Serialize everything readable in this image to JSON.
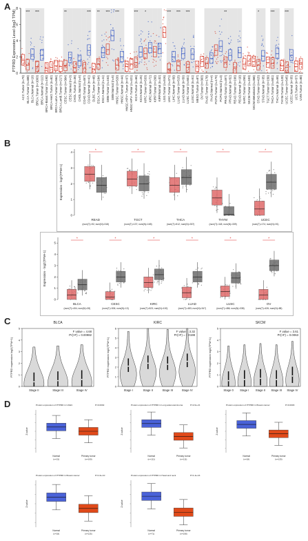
{
  "figure": {
    "panel_letters": {
      "a": "A",
      "b": "B",
      "c": "C",
      "d": "D"
    }
  },
  "panel_a": {
    "ylabel": "PTPRD Expression Level (log2 TPM)",
    "colors": {
      "tumor": "#d43a2a",
      "normal": "#3b5cc4",
      "band": "#cfcfcf"
    },
    "groups": [
      {
        "label": "ACC.Tumor (n=79)",
        "type": "tumor",
        "median": 1.6,
        "sig": ""
      },
      {
        "label": "BLCA.Tumor (n=408)",
        "type": "tumor",
        "median": 1.0,
        "sig": "***"
      },
      {
        "label": "BLCA.Normal (n=19)",
        "type": "normal",
        "median": 2.3,
        "sig": ""
      },
      {
        "label": "BRCA.Tumor (n=1093)",
        "type": "tumor",
        "median": 0.8,
        "sig": "***"
      },
      {
        "label": "BRCA.Normal (n=112)",
        "type": "normal",
        "median": 2.2,
        "sig": ""
      },
      {
        "label": "BRCA-Basal.Tumor (n=190)",
        "type": "tumor",
        "median": 0.6,
        "sig": ""
      },
      {
        "label": "BRCA-Her2.Tumor (n=82)",
        "type": "tumor",
        "median": 0.7,
        "sig": ""
      },
      {
        "label": "BRCA-LumA.Tumor (n=564)",
        "type": "tumor",
        "median": 0.9,
        "sig": ""
      },
      {
        "label": "BRCA-LumB.Tumor (n=217)",
        "type": "tumor",
        "median": 0.8,
        "sig": ""
      },
      {
        "label": "CESC.Tumor (n=304)",
        "type": "tumor",
        "median": 0.9,
        "sig": "**"
      },
      {
        "label": "CESC.Normal (n=3)",
        "type": "normal",
        "median": 1.9,
        "sig": ""
      },
      {
        "label": "CHOL.Tumor (n=36)",
        "type": "tumor",
        "median": 0.7,
        "sig": ""
      },
      {
        "label": "CHOL.Normal (n=9)",
        "type": "normal",
        "median": 1.5,
        "sig": ""
      },
      {
        "label": "COAD.Tumor (n=457)",
        "type": "tumor",
        "median": 0.6,
        "sig": ""
      },
      {
        "label": "COAD.Normal (n=41)",
        "type": "normal",
        "median": 2.8,
        "sig": "***"
      },
      {
        "label": "DLBC.Tumor (n=48)",
        "type": "tumor",
        "median": 0.5,
        "sig": ""
      },
      {
        "label": "ESCA.Tumor (n=184)",
        "type": "tumor",
        "median": 1.1,
        "sig": "**"
      },
      {
        "label": "ESCA.Normal (n=11)",
        "type": "normal",
        "median": 2.5,
        "sig": ""
      },
      {
        "label": "GBM.Tumor (n=153)",
        "type": "tumor",
        "median": 2.9,
        "sig": "***"
      },
      {
        "label": "GBM.Normal (n=5)",
        "type": "normal",
        "median": 4.6,
        "sig": ""
      },
      {
        "label": "HNSC.Tumor (n=520)",
        "type": "tumor",
        "median": 1.0,
        "sig": "***"
      },
      {
        "label": "HNSC.Normal (n=44)",
        "type": "normal",
        "median": 2.0,
        "sig": ""
      },
      {
        "label": "HNSC-HPV+.Tumor (n=97)",
        "type": "tumor",
        "median": 0.8,
        "sig": ""
      },
      {
        "label": "HNSC-HPV-.Tumor (n=421)",
        "type": "tumor",
        "median": 1.1,
        "sig": ""
      },
      {
        "label": "KICH.Tumor (n=66)",
        "type": "tumor",
        "median": 1.3,
        "sig": "***"
      },
      {
        "label": "KICH.Normal (n=25)",
        "type": "normal",
        "median": 2.6,
        "sig": ""
      },
      {
        "label": "KIRC.Tumor (n=533)",
        "type": "tumor",
        "median": 2.4,
        "sig": "*"
      },
      {
        "label": "KIRC.Normal (n=72)",
        "type": "normal",
        "median": 3.1,
        "sig": ""
      },
      {
        "label": "KIRP.Tumor (n=290)",
        "type": "tumor",
        "median": 2.6,
        "sig": ""
      },
      {
        "label": "KIRP.Normal (n=32)",
        "type": "normal",
        "median": 3.0,
        "sig": ""
      },
      {
        "label": "LGG.Tumor (n=516)",
        "type": "tumor",
        "median": 5.0,
        "sig": ""
      },
      {
        "label": "LIHC.Tumor (n=371)",
        "type": "tumor",
        "median": 0.5,
        "sig": "***"
      },
      {
        "label": "LIHC.Normal (n=50)",
        "type": "normal",
        "median": 2.0,
        "sig": ""
      },
      {
        "label": "LUAD.Tumor (n=515)",
        "type": "tumor",
        "median": 0.9,
        "sig": "***"
      },
      {
        "label": "LUAD.Normal (n=59)",
        "type": "normal",
        "median": 2.4,
        "sig": ""
      },
      {
        "label": "LUSC.Tumor (n=501)",
        "type": "tumor",
        "median": 0.7,
        "sig": "***"
      },
      {
        "label": "LUSC.Normal (n=51)",
        "type": "normal",
        "median": 2.3,
        "sig": ""
      },
      {
        "label": "MESO.Tumor (n=87)",
        "type": "tumor",
        "median": 0.8,
        "sig": ""
      },
      {
        "label": "OV.Tumor (n=303)",
        "type": "tumor",
        "median": 1.4,
        "sig": ""
      },
      {
        "label": "PAAD.Tumor (n=178)",
        "type": "tumor",
        "median": 1.2,
        "sig": ""
      },
      {
        "label": "PAAD.Normal (n=4)",
        "type": "normal",
        "median": 1.8,
        "sig": ""
      },
      {
        "label": "PCPG.Tumor (n=179)",
        "type": "tumor",
        "median": 2.8,
        "sig": ""
      },
      {
        "label": "PCPG.Normal (n=3)",
        "type": "normal",
        "median": 3.3,
        "sig": ""
      },
      {
        "label": "PRAD.Tumor (n=497)",
        "type": "tumor",
        "median": 1.3,
        "sig": "**"
      },
      {
        "label": "PRAD.Normal (n=52)",
        "type": "normal",
        "median": 2.2,
        "sig": ""
      },
      {
        "label": "READ.Tumor (n=166)",
        "type": "tumor",
        "median": 0.6,
        "sig": ""
      },
      {
        "label": "READ.Normal (n=10)",
        "type": "normal",
        "median": 2.5,
        "sig": ""
      },
      {
        "label": "SARC.Tumor (n=259)",
        "type": "tumor",
        "median": 1.1,
        "sig": ""
      },
      {
        "label": "SKCM.Tumor (n=103)",
        "type": "tumor",
        "median": 1.5,
        "sig": ""
      },
      {
        "label": "SKCM.Metastasis (n=368)",
        "type": "tumor",
        "median": 1.4,
        "sig": ""
      },
      {
        "label": "STAD.Tumor (n=415)",
        "type": "tumor",
        "median": 1.0,
        "sig": "*"
      },
      {
        "label": "STAD.Normal (n=35)",
        "type": "normal",
        "median": 2.1,
        "sig": ""
      },
      {
        "label": "TGCT.Tumor (n=150)",
        "type": "tumor",
        "median": 1.3,
        "sig": ""
      },
      {
        "label": "THCA.Tumor (n=501)",
        "type": "tumor",
        "median": 1.2,
        "sig": "***"
      },
      {
        "label": "THCA.Normal (n=59)",
        "type": "normal",
        "median": 2.4,
        "sig": ""
      },
      {
        "label": "THYM.Tumor (n=120)",
        "type": "tumor",
        "median": 0.9,
        "sig": ""
      },
      {
        "label": "UCEC.Tumor (n=545)",
        "type": "tumor",
        "median": 0.7,
        "sig": "***"
      },
      {
        "label": "UCEC.Normal (n=35)",
        "type": "normal",
        "median": 2.2,
        "sig": ""
      },
      {
        "label": "UCS.Tumor (n=57)",
        "type": "tumor",
        "median": 0.8,
        "sig": ""
      },
      {
        "label": "UVM.Tumor (n=80)",
        "type": "tumor",
        "median": 1.1,
        "sig": ""
      }
    ]
  },
  "panel_b": {
    "ylabel": "Expression - log2(TPM+1)",
    "colors": {
      "tumor": "#e06a6a",
      "normal": "#6d6d6d",
      "sig": "#e03030"
    },
    "top": [
      {
        "name": "READ",
        "n": "(num(T)=92; num(N)=318)",
        "tumor": 2.6,
        "normal": 1.9,
        "sig": "*"
      },
      {
        "name": "TGCT",
        "n": "(num(T)=137; num(N)=165)",
        "tumor": 2.3,
        "normal": 2.0,
        "sig": "*"
      },
      {
        "name": "THCA",
        "n": "(num(T)=512; num(N)=337)",
        "tumor": 1.9,
        "normal": 2.4,
        "sig": "*"
      },
      {
        "name": "THYM",
        "n": "(num(T)=118; num(N)=339)",
        "tumor": 1.1,
        "normal": 0.05,
        "sig": "*"
      },
      {
        "name": "UCEC",
        "n": "(num(T)=174; num(N)=91)",
        "tumor": 0.4,
        "normal": 2.1,
        "sig": "*"
      }
    ],
    "bottom": [
      {
        "name": "BLCA",
        "n": "(num(T)=404; num(N)=28)",
        "tumor": 0.4,
        "normal": 1.3,
        "sig": "*"
      },
      {
        "name": "CESC",
        "n": "(num(T)=306; num(N)=13)",
        "tumor": 0.2,
        "normal": 2.0,
        "sig": "*"
      },
      {
        "name": "KIRC",
        "n": "(num(T)=523; num(N)=100)",
        "tumor": 1.5,
        "normal": 2.2,
        "sig": "*"
      },
      {
        "name": "LUAD",
        "n": "(num(T)=483; num(N)=347)",
        "tumor": 0.6,
        "normal": 2.0,
        "sig": "*"
      },
      {
        "name": "LUSC",
        "n": "(num(T)=486; num(N)=338)",
        "tumor": 0.7,
        "normal": 1.9,
        "sig": "*"
      },
      {
        "name": "OV",
        "n": "(num(T)=426; num(N)=88)",
        "tumor": 0.4,
        "normal": 3.0,
        "sig": "*"
      }
    ]
  },
  "panel_c": {
    "ylabel": "PTPRD expression log2(TPM+1)",
    "plots": [
      {
        "title": "BLCA",
        "fvalue": "F value = 4.68",
        "pr": "Pr(>F) = 0.00982",
        "stages": [
          "Stage II",
          "Stage III",
          "Stage IV"
        ],
        "medians": [
          0.4,
          0.5,
          0.6
        ]
      },
      {
        "title": "KIRC",
        "fvalue": "F value = 3.32",
        "pr": "Pr(>F) = 0.0198",
        "stages": [
          "Stage I",
          "Stage II",
          "Stage III",
          "Stage IV"
        ],
        "medians": [
          2.1,
          2.4,
          2.3,
          2.6
        ]
      },
      {
        "title": "SKCM",
        "fvalue": "F value = 3.61",
        "pr": "Pr(>F) = 0.0063",
        "stages": [
          "Stage 0",
          "Stage I",
          "Stage II",
          "Stage III",
          "Stage IV"
        ],
        "medians": [
          0.5,
          0.6,
          0.7,
          0.6,
          0.9
        ]
      }
    ]
  },
  "panel_d": {
    "ylabel": "Z-value",
    "colors": {
      "normal": "#4a62d8",
      "tumor": "#e04a1a"
    },
    "plots": [
      {
        "title": "Protein expression of PTPRD in UCEC",
        "p": "P=0.0002",
        "normal_label": "Normal",
        "normal_n": "(n=31)",
        "tumor_label": "Primary tumor",
        "tumor_n": "(n=100)",
        "normal_median": 0.5,
        "tumor_median": 0.0
      },
      {
        "title": "Protein expression of PTPRD in Lung adenocarcinoma",
        "p": "P=2.0e-21",
        "normal_label": "Normal",
        "normal_n": "(n=111)",
        "tumor_label": "Primary tumor",
        "tumor_n": "(n=111)",
        "normal_median": 0.9,
        "tumor_median": -0.6
      },
      {
        "title": "Protein expression of PTPRD in Breast cancer",
        "p": "P=0.0003",
        "normal_label": "Normal",
        "normal_n": "(n=18)",
        "tumor_label": "Primary tumor",
        "tumor_n": "(n=125)",
        "normal_median": 0.8,
        "tumor_median": -0.3
      },
      {
        "title": "Protein expression of PTPRD in Breast cancer",
        "p": "P=1.6e-10",
        "normal_label": "Normal",
        "normal_n": "(n=18)",
        "tumor_label": "Primary tumor",
        "tumor_n": "(n=125)",
        "normal_median": 0.7,
        "tumor_median": -0.5
      },
      {
        "title": "Protein expression of PTPRD in Head and neck",
        "p": "P=1.4e-16",
        "normal_label": "Normal",
        "normal_n": "(n=71)",
        "tumor_label": "Primary tumor",
        "tumor_n": "(n=108)",
        "normal_median": 0.8,
        "tumor_median": -0.9
      }
    ]
  }
}
